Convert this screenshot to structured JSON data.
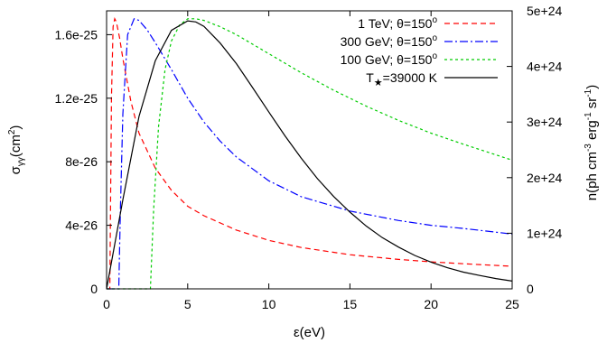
{
  "chart_data": {
    "type": "line",
    "xlabel": "ε(eV)",
    "ylabel_left": "σ_γγ(cm^2)",
    "ylabel_right": "n(ph cm^-3 erg^-1 sr^-1)",
    "xlim": [
      0,
      25
    ],
    "ylim_left": [
      0,
      1.75e-25
    ],
    "ylim_right": [
      0,
      5e+24
    ],
    "legend_placement": "top-right",
    "xticks": [
      0,
      5,
      10,
      15,
      20,
      25
    ],
    "yticks_left": [
      {
        "value": 0,
        "label": "0"
      },
      {
        "value": 4e-26,
        "label": "4e-26"
      },
      {
        "value": 8e-26,
        "label": "8e-26"
      },
      {
        "value": 1.2e-25,
        "label": "1.2e-25"
      },
      {
        "value": 1.6e-25,
        "label": "1.6e-25"
      }
    ],
    "yticks_right": [
      {
        "value": 0,
        "label": "0"
      },
      {
        "value": 1e+24,
        "label": "1e+24"
      },
      {
        "value": 2e+24,
        "label": "2e+24"
      },
      {
        "value": 3e+24,
        "label": "3e+24"
      },
      {
        "value": 4e+24,
        "label": "4e+24"
      },
      {
        "value": 5e+24,
        "label": "5e+24"
      }
    ],
    "series": [
      {
        "name": "1 TeV; θ=150°",
        "legend_main": "1 TeV; θ=150",
        "legend_sup": "o",
        "axis": "left",
        "color": "#ff0000",
        "dash": "6,4",
        "x": [
          0.0,
          0.2,
          0.3,
          0.4,
          0.5,
          0.6,
          0.8,
          1.0,
          1.5,
          2.0,
          3.0,
          4.0,
          5.0,
          6.0,
          8.0,
          10.0,
          12.0,
          15.0,
          18.0,
          20.0,
          22.0,
          25.0
        ],
        "y": [
          0,
          0,
          1.2e-25,
          1.65e-25,
          1.7e-25,
          1.68e-25,
          1.58e-25,
          1.45e-25,
          1.18e-25,
          9.8e-26,
          7.6e-26,
          6.2e-26,
          5.2e-26,
          4.6e-26,
          3.7e-26,
          3.05e-26,
          2.6e-26,
          2.15e-26,
          1.85e-26,
          1.7e-26,
          1.58e-26,
          1.42e-26
        ]
      },
      {
        "name": "300 GeV; θ=150°",
        "legend_main": "300 GeV; θ=150",
        "legend_sup": "o",
        "axis": "left",
        "color": "#0000ff",
        "dash": "9,3,2,3",
        "x": [
          0.0,
          0.75,
          0.85,
          1.0,
          1.3,
          1.7,
          2.0,
          2.5,
          3.0,
          4.0,
          5.0,
          6.0,
          7.0,
          8.0,
          10.0,
          12.0,
          15.0,
          18.0,
          20.0,
          22.0,
          25.0
        ],
        "y": [
          0,
          0,
          5e-26,
          1.1e-25,
          1.6e-25,
          1.7e-25,
          1.69e-25,
          1.63e-25,
          1.55e-25,
          1.38e-25,
          1.2e-25,
          1.05e-25,
          9.3e-26,
          8.3e-26,
          6.8e-26,
          5.8e-26,
          4.9e-26,
          4.3e-26,
          4e-26,
          3.8e-26,
          3.45e-26
        ]
      },
      {
        "name": "100 GeV; θ=150°",
        "legend_main": "100 GeV; θ=150",
        "legend_sup": "o",
        "axis": "left",
        "color": "#00cc00",
        "dash": "3,3",
        "x": [
          0.0,
          2.7,
          2.9,
          3.2,
          3.6,
          4.0,
          4.5,
          5.0,
          5.5,
          6.0,
          7.0,
          8.0,
          10.0,
          12.0,
          14.0,
          16.0,
          18.0,
          20.0,
          22.0,
          25.0
        ],
        "y": [
          0,
          0,
          5e-26,
          1.02e-25,
          1.38e-25,
          1.56e-25,
          1.66e-25,
          1.7e-25,
          1.7e-25,
          1.69e-25,
          1.65e-25,
          1.6e-25,
          1.48e-25,
          1.36e-25,
          1.25e-25,
          1.15e-25,
          1.06e-25,
          9.8e-26,
          9.1e-26,
          8.1e-26
        ]
      },
      {
        "name": "T★=39000 K",
        "legend_main": "T",
        "legend_sub": "★",
        "legend_tail": "=39000 K",
        "axis": "right",
        "color": "#000000",
        "dash": "",
        "x": [
          0.0,
          1.0,
          2.0,
          3.0,
          4.0,
          5.0,
          5.5,
          6.0,
          7.0,
          8.0,
          9.0,
          10.0,
          11.0,
          12.0,
          13.0,
          14.0,
          15.0,
          16.0,
          17.0,
          18.0,
          19.0,
          20.0,
          21.0,
          22.0,
          23.0,
          24.0,
          25.0
        ],
        "y": [
          0,
          1.6e+24,
          3.1e+24,
          4.1e+24,
          4.65e+24,
          4.82e+24,
          4.8e+24,
          4.72e+24,
          4.42e+24,
          4.05e+24,
          3.62e+24,
          3.18e+24,
          2.75e+24,
          2.35e+24,
          1.98e+24,
          1.66e+24,
          1.38e+24,
          1.13e+24,
          9.2e+23,
          7.5e+23,
          6e+23,
          4.8e+23,
          3.8e+23,
          3e+23,
          2.4e+23,
          1.85e+23,
          1.4e+23
        ]
      }
    ]
  }
}
